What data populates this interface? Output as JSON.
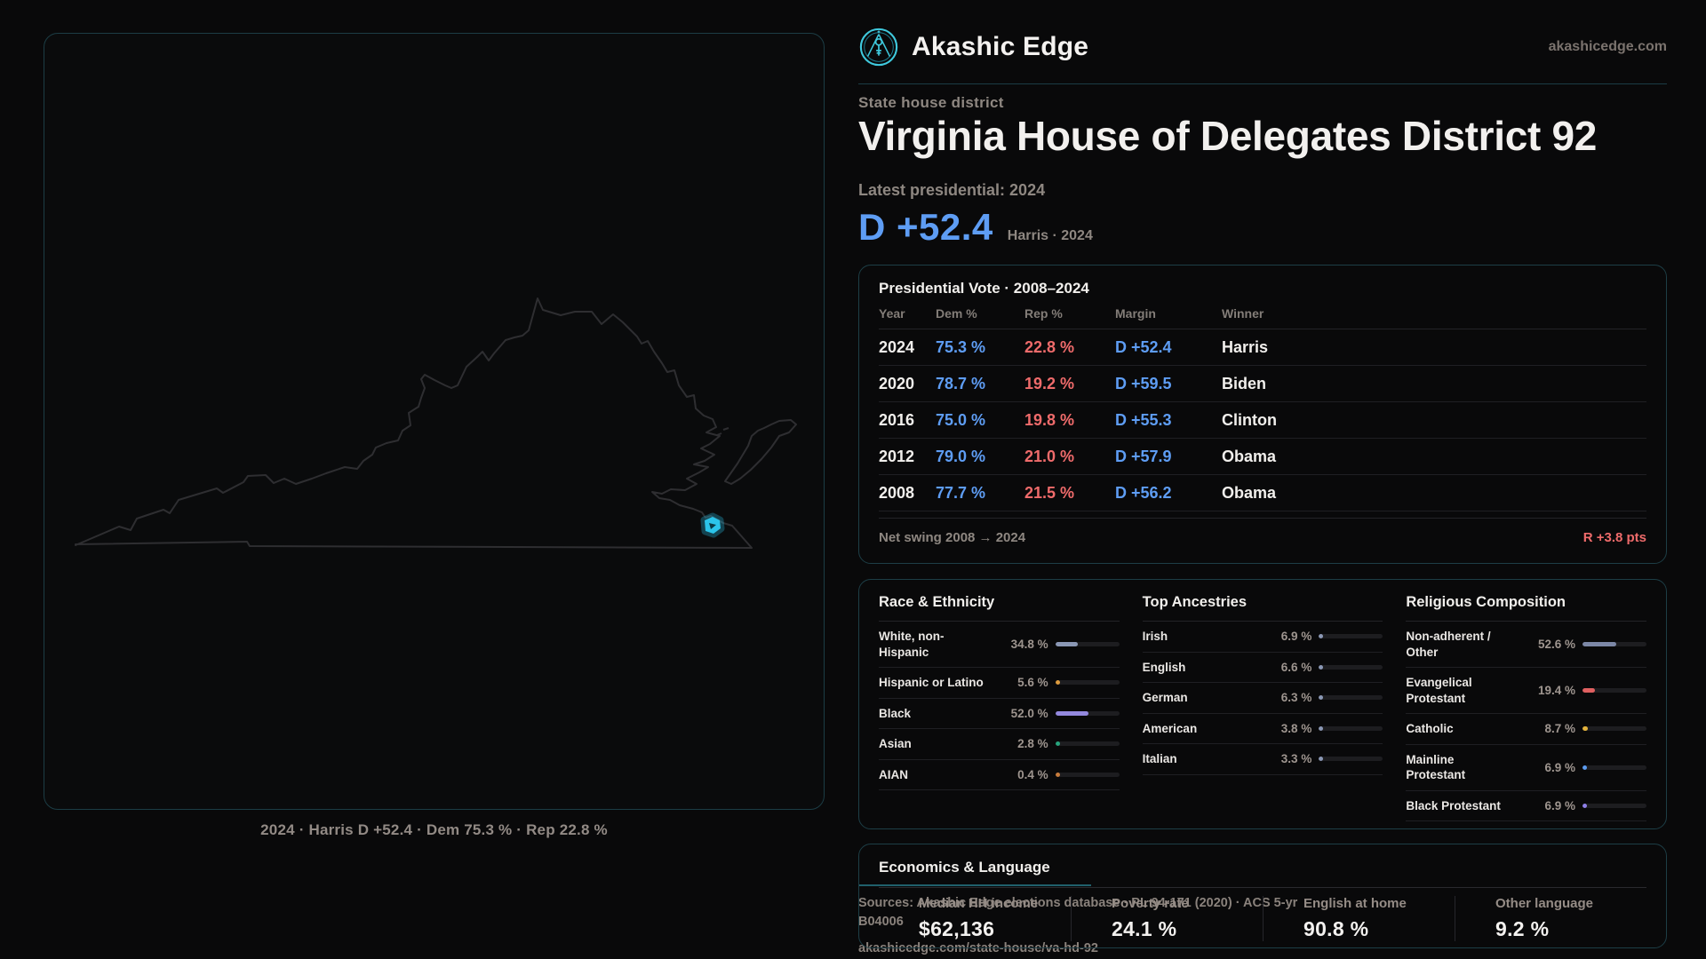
{
  "brand": {
    "name": "Akashic Edge",
    "site": "akashicedge.com"
  },
  "hero": {
    "kicker": "State house district",
    "title": "Virginia House of Delegates District 92",
    "latest_label": "Latest presidential: 2024",
    "margin": "D +52.4",
    "margin_context": "Harris · 2024"
  },
  "map": {
    "caption": "2024 · Harris D +52.4 · Dem 75.3 % · Rep 22.8 %",
    "district_color": "#2cc5ea",
    "outline_color": "#2e2e31"
  },
  "presidential": {
    "title": "Presidential Vote · 2008–2024",
    "columns": [
      "Year",
      "Dem %",
      "Rep %",
      "Margin",
      "Winner"
    ],
    "rows": [
      {
        "year": "2024",
        "dem": "75.3 %",
        "rep": "22.8 %",
        "margin": "D +52.4",
        "winner": "Harris"
      },
      {
        "year": "2020",
        "dem": "78.7 %",
        "rep": "19.2 %",
        "margin": "D +59.5",
        "winner": "Biden"
      },
      {
        "year": "2016",
        "dem": "75.0 %",
        "rep": "19.8 %",
        "margin": "D +55.3",
        "winner": "Clinton"
      },
      {
        "year": "2012",
        "dem": "79.0 %",
        "rep": "21.0 %",
        "margin": "D +57.9",
        "winner": "Obama"
      },
      {
        "year": "2008",
        "dem": "77.7 %",
        "rep": "21.5 %",
        "margin": "D +56.2",
        "winner": "Obama"
      }
    ],
    "net_swing_label": "Net swing 2008 → 2024",
    "net_swing_value": "R +3.8 pts"
  },
  "demographics": {
    "race": {
      "title": "Race & Ethnicity",
      "items": [
        {
          "label": "White, non-Hispanic",
          "value": "34.8 %",
          "pct": 34.8,
          "color": "#8b98b5"
        },
        {
          "label": "Hispanic or Latino",
          "value": "5.6 %",
          "pct": 5.6,
          "color": "#dd9b3d"
        },
        {
          "label": "Black",
          "value": "52.0 %",
          "pct": 52.0,
          "color": "#9388de"
        },
        {
          "label": "Asian",
          "value": "2.8 %",
          "pct": 2.8,
          "color": "#27a57d"
        },
        {
          "label": "AIAN",
          "value": "0.4 %",
          "pct": 0.4,
          "color": "#c87c3c"
        }
      ]
    },
    "ancestries": {
      "title": "Top Ancestries",
      "items": [
        {
          "label": "Irish",
          "value": "6.9 %",
          "pct": 6.9,
          "color": "#8b98b5"
        },
        {
          "label": "English",
          "value": "6.6 %",
          "pct": 6.6,
          "color": "#8b98b5"
        },
        {
          "label": "German",
          "value": "6.3 %",
          "pct": 6.3,
          "color": "#8b98b5"
        },
        {
          "label": "American",
          "value": "3.8 %",
          "pct": 3.8,
          "color": "#8b98b5"
        },
        {
          "label": "Italian",
          "value": "3.3 %",
          "pct": 3.3,
          "color": "#8b98b5"
        }
      ]
    },
    "religion": {
      "title": "Religious Composition",
      "items": [
        {
          "label": "Non-adherent / Other",
          "value": "52.6 %",
          "pct": 52.6,
          "color": "#7c87a6"
        },
        {
          "label": "Evangelical Protestant",
          "value": "19.4 %",
          "pct": 19.4,
          "color": "#e06060"
        },
        {
          "label": "Catholic",
          "value": "8.7 %",
          "pct": 8.7,
          "color": "#e3b33c"
        },
        {
          "label": "Mainline Protestant",
          "value": "6.9 %",
          "pct": 6.9,
          "color": "#5c9cf0"
        },
        {
          "label": "Black Protestant",
          "value": "6.9 %",
          "pct": 6.9,
          "color": "#8f80e8"
        }
      ]
    }
  },
  "economics": {
    "title": "Economics & Language",
    "stats": [
      {
        "label": "Median HH income",
        "value": "$62,136"
      },
      {
        "label": "Poverty rate",
        "value": "24.1 %"
      },
      {
        "label": "English at home",
        "value": "90.8 %"
      },
      {
        "label": "Other language",
        "value": "9.2 %"
      }
    ]
  },
  "sources": {
    "line1": "Sources: Akashic Edge elections database · PL 94-171 (2020) · ACS 5-yr B04006",
    "line2": "akashicedge.com/state-house/va-hd-92"
  },
  "colors": {
    "dem": "#5e9df4",
    "rep": "#ef6b6b",
    "accent": "#2cc5ea",
    "panel_border": "#1d3e46"
  }
}
